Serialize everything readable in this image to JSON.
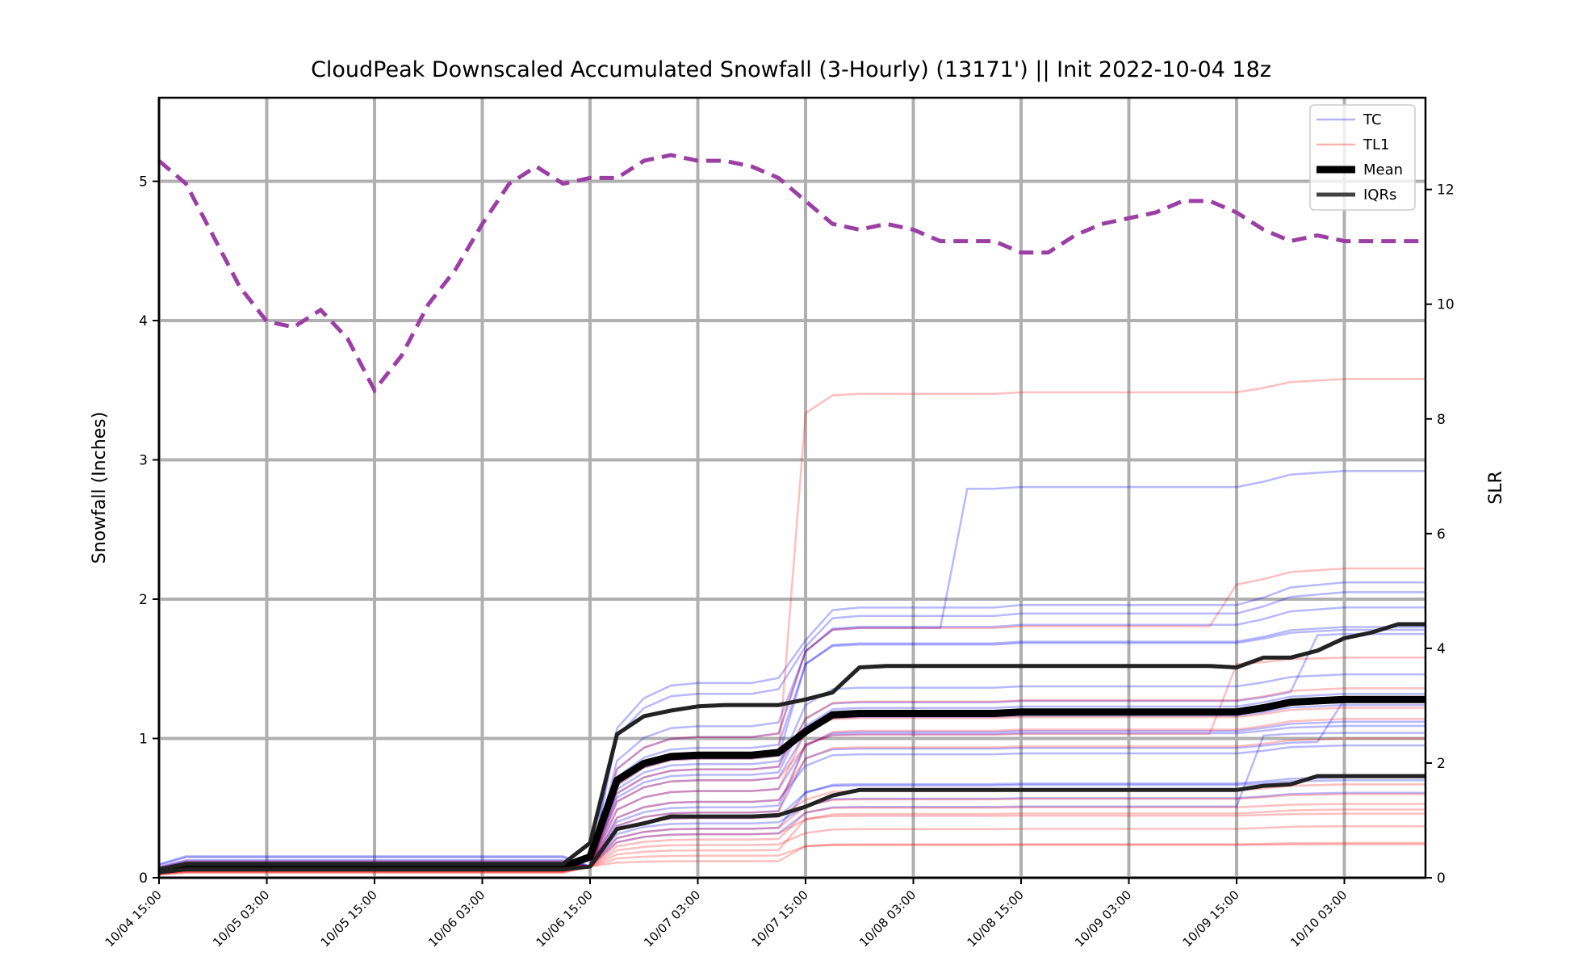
{
  "chart_data": {
    "type": "line",
    "title": "CloudPeak Downscaled Accumulated Snowfall (3-Hourly) (13171') || Init 2022-10-04 18z",
    "ylabel": "Snowfall (Inches)",
    "y2label": "SLR",
    "ylim": [
      0,
      5.6
    ],
    "y2lim": [
      0,
      13.6
    ],
    "yticks": [
      0,
      1,
      2,
      3,
      4,
      5
    ],
    "y2ticks": [
      0,
      2,
      4,
      6,
      8,
      10,
      12
    ],
    "grid": true,
    "legend_position": "top-right",
    "legend": [
      {
        "label": "TC",
        "color": "#0000ff",
        "style": "thin-translucent"
      },
      {
        "label": "TL1",
        "color": "#ff0000",
        "style": "thin-translucent"
      },
      {
        "label": "Mean",
        "color": "#000000",
        "style": "thick"
      },
      {
        "label": "IQRs",
        "color": "#222222",
        "style": "medium"
      }
    ],
    "colors": {
      "tc": "#0000ff",
      "tl1": "#ff0000",
      "mean": "#000000",
      "iqr": "#222222",
      "slr": "#9b3fa5",
      "grid": "#b0b0b0"
    },
    "x_tick_labels": [
      "10/04 15:00",
      "10/05 03:00",
      "10/05 15:00",
      "10/06 03:00",
      "10/06 15:00",
      "10/07 03:00",
      "10/07 15:00",
      "10/08 03:00",
      "10/08 15:00",
      "10/09 03:00",
      "10/09 15:00",
      "10/10 03:00"
    ],
    "x_hours": [
      0,
      3,
      6,
      9,
      12,
      15,
      18,
      21,
      24,
      27,
      30,
      33,
      36,
      39,
      42,
      45,
      48,
      51,
      54,
      57,
      60,
      63,
      66,
      69,
      72,
      75,
      78,
      81,
      84,
      87,
      90,
      93,
      96,
      99,
      102,
      105,
      108,
      111,
      114,
      117,
      120,
      123,
      126,
      129,
      132,
      135,
      138,
      141
    ],
    "series": [
      {
        "name": "Mean",
        "values": [
          0.05,
          0.08,
          0.08,
          0.08,
          0.08,
          0.08,
          0.08,
          0.08,
          0.08,
          0.08,
          0.08,
          0.08,
          0.08,
          0.08,
          0.08,
          0.08,
          0.15,
          0.7,
          0.82,
          0.87,
          0.88,
          0.88,
          0.88,
          0.9,
          1.05,
          1.17,
          1.18,
          1.18,
          1.18,
          1.18,
          1.18,
          1.18,
          1.19,
          1.19,
          1.19,
          1.19,
          1.19,
          1.19,
          1.19,
          1.19,
          1.19,
          1.22,
          1.26,
          1.27,
          1.28,
          1.28,
          1.28,
          1.28
        ]
      },
      {
        "name": "IQR upper",
        "values": [
          0.06,
          0.1,
          0.1,
          0.1,
          0.1,
          0.1,
          0.1,
          0.1,
          0.1,
          0.1,
          0.1,
          0.1,
          0.1,
          0.1,
          0.1,
          0.1,
          0.25,
          1.03,
          1.16,
          1.2,
          1.23,
          1.24,
          1.24,
          1.24,
          1.28,
          1.33,
          1.51,
          1.52,
          1.52,
          1.52,
          1.52,
          1.52,
          1.52,
          1.52,
          1.52,
          1.52,
          1.52,
          1.52,
          1.52,
          1.52,
          1.51,
          1.58,
          1.58,
          1.63,
          1.72,
          1.76,
          1.82,
          1.82
        ]
      },
      {
        "name": "IQR lower",
        "values": [
          0.04,
          0.06,
          0.06,
          0.06,
          0.06,
          0.06,
          0.06,
          0.06,
          0.06,
          0.06,
          0.06,
          0.06,
          0.06,
          0.06,
          0.06,
          0.06,
          0.08,
          0.35,
          0.39,
          0.44,
          0.44,
          0.44,
          0.44,
          0.45,
          0.51,
          0.59,
          0.63,
          0.63,
          0.63,
          0.63,
          0.63,
          0.63,
          0.63,
          0.63,
          0.63,
          0.63,
          0.63,
          0.63,
          0.63,
          0.63,
          0.63,
          0.66,
          0.67,
          0.73,
          0.73,
          0.73,
          0.73,
          0.73
        ]
      },
      {
        "name": "SLR",
        "values": [
          12.5,
          12.1,
          11.2,
          10.3,
          9.7,
          9.6,
          9.9,
          9.4,
          8.5,
          9.1,
          10.0,
          10.6,
          11.4,
          12.1,
          12.4,
          12.1,
          12.2,
          12.2,
          12.5,
          12.6,
          12.5,
          12.5,
          12.4,
          12.2,
          11.8,
          11.4,
          11.3,
          11.4,
          11.3,
          11.1,
          11.1,
          11.1,
          10.9,
          10.9,
          11.2,
          11.4,
          11.5,
          11.6,
          11.8,
          11.8,
          11.6,
          11.3,
          11.1,
          11.2,
          11.1,
          11.1,
          11.1,
          11.1
        ]
      }
    ]
  }
}
